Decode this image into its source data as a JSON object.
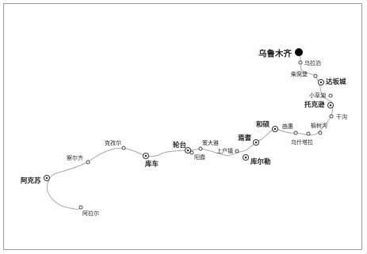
{
  "map": {
    "cities": [
      {
        "id": "urumqi",
        "name": "乌鲁木齐",
        "rank": "capital"
      },
      {
        "id": "wulabo",
        "name": "乌拉泊",
        "rank": "minor"
      },
      {
        "id": "chaiwopu",
        "name": "柴窝堡",
        "rank": "minor"
      },
      {
        "id": "dabancheng",
        "name": "达坂城",
        "rank": "major"
      },
      {
        "id": "xiaocaohu",
        "name": "小草湖",
        "rank": "minor"
      },
      {
        "id": "toksun",
        "name": "托克逊",
        "rank": "major"
      },
      {
        "id": "ganggou",
        "name": "干沟",
        "rank": "minor"
      },
      {
        "id": "yushugou",
        "name": "榆树沟",
        "rank": "minor"
      },
      {
        "id": "wushitala",
        "name": "乌什塔拉",
        "rank": "minor"
      },
      {
        "id": "qule",
        "name": "曲惠",
        "rank": "minor"
      },
      {
        "id": "hejing",
        "name": "和硕",
        "rank": "medium"
      },
      {
        "id": "yanqi",
        "name": "焉耆",
        "rank": "major"
      },
      {
        "id": "korla",
        "name": "库尔勒",
        "rank": "major"
      },
      {
        "id": "shanghuzhen",
        "name": "上户镇",
        "rank": "minor"
      },
      {
        "id": "cedaya",
        "name": "策大雅",
        "rank": "minor"
      },
      {
        "id": "luntai",
        "name": "轮台",
        "rank": "major"
      },
      {
        "id": "yangxia",
        "name": "阳霞",
        "rank": "minor"
      },
      {
        "id": "kuqa",
        "name": "库车",
        "rank": "major"
      },
      {
        "id": "kizil",
        "name": "克孜尔",
        "rank": "minor"
      },
      {
        "id": "chaerqi",
        "name": "察尔齐",
        "rank": "minor"
      },
      {
        "id": "aksu",
        "name": "阿克苏",
        "rank": "major"
      },
      {
        "id": "aral",
        "name": "阿拉尔",
        "rank": "minor"
      }
    ]
  }
}
